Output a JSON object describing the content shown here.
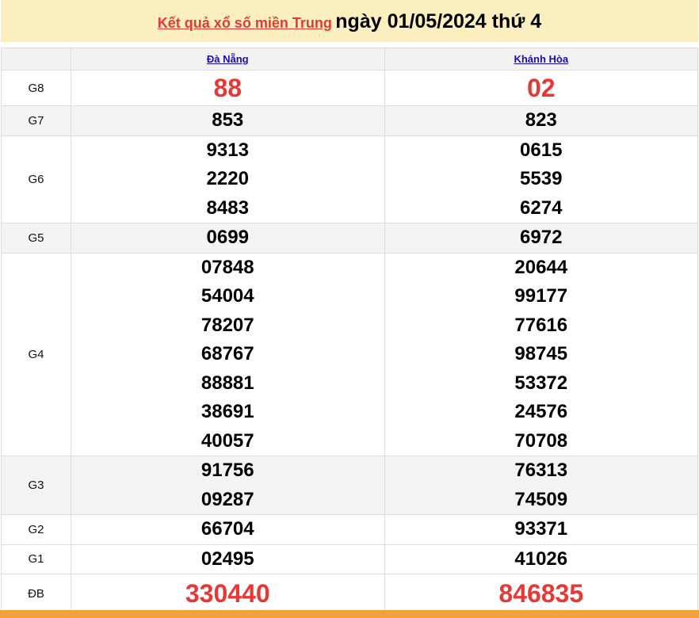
{
  "header": {
    "link": "Kết quả xổ số miền Trung",
    "date": "ngày 01/05/2024 thứ 4"
  },
  "columns": [
    "Đà Nẵng",
    "Khánh Hòa"
  ],
  "rows": [
    {
      "label": "G8",
      "a": [
        "88"
      ],
      "b": [
        "02"
      ]
    },
    {
      "label": "G7",
      "a": [
        "853"
      ],
      "b": [
        "823"
      ]
    },
    {
      "label": "G6",
      "a": [
        "9313",
        "2220",
        "8483"
      ],
      "b": [
        "0615",
        "5539",
        "6274"
      ]
    },
    {
      "label": "G5",
      "a": [
        "0699"
      ],
      "b": [
        "6972"
      ]
    },
    {
      "label": "G4",
      "a": [
        "07848",
        "54004",
        "78207",
        "68767",
        "88881",
        "38691",
        "40057"
      ],
      "b": [
        "20644",
        "99177",
        "77616",
        "98745",
        "53372",
        "24576",
        "70708"
      ]
    },
    {
      "label": "G3",
      "a": [
        "91756",
        "09287"
      ],
      "b": [
        "76313",
        "74509"
      ]
    },
    {
      "label": "G2",
      "a": [
        "66704"
      ],
      "b": [
        "93371"
      ]
    },
    {
      "label": "G1",
      "a": [
        "02495"
      ],
      "b": [
        "41026"
      ]
    },
    {
      "label": "ĐB",
      "a": [
        "330440"
      ],
      "b": [
        "846835"
      ]
    }
  ],
  "colors": {
    "accent": "#e53935",
    "header_bg": "#fcefbf",
    "footer": "#f4a040"
  }
}
